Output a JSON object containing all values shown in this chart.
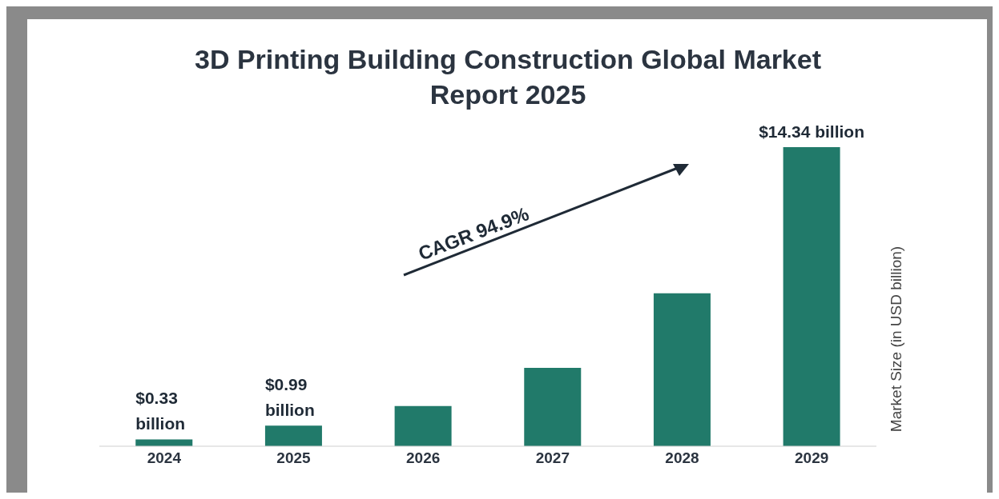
{
  "chart_data": {
    "type": "bar",
    "title": "3D Printing Building Construction Global Market Report 2025",
    "ylabel": "Market Size (in USD billion)",
    "categories": [
      "2024",
      "2025",
      "2026",
      "2027",
      "2028",
      "2029"
    ],
    "values": [
      0.33,
      0.99,
      1.93,
      3.76,
      7.33,
      14.34
    ],
    "value_labels": [
      "$0.33 billion",
      "$0.99 billion",
      null,
      null,
      null,
      "$14.34 billion"
    ],
    "color": "#217a6a",
    "annotations": [
      "CAGR 94.9%"
    ]
  }
}
